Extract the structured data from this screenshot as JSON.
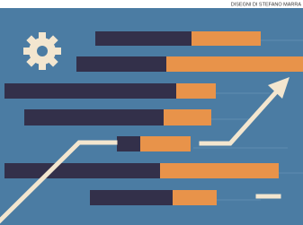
{
  "credit": "DISEGNI DI STEFANO MARRA"
}
